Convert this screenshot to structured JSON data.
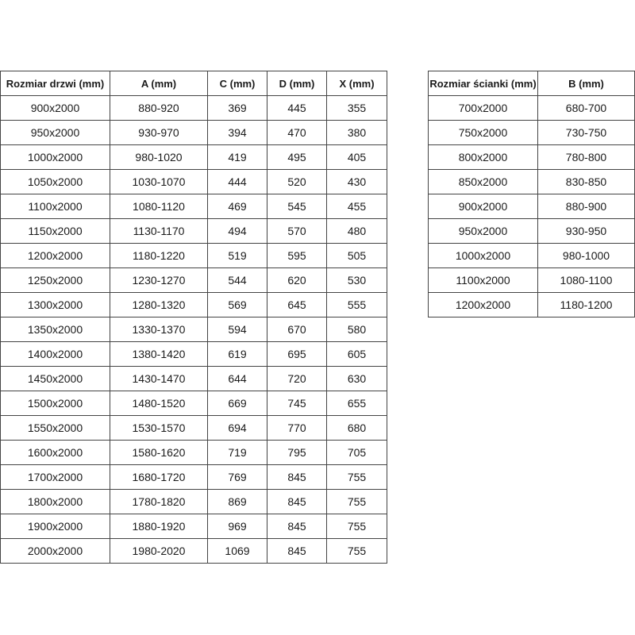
{
  "doors_table": {
    "headers": [
      "Rozmiar drzwi (mm)",
      "A (mm)",
      "C (mm)",
      "D (mm)",
      "X (mm)"
    ],
    "rows": [
      [
        "900x2000",
        "880-920",
        "369",
        "445",
        "355"
      ],
      [
        "950x2000",
        "930-970",
        "394",
        "470",
        "380"
      ],
      [
        "1000x2000",
        "980-1020",
        "419",
        "495",
        "405"
      ],
      [
        "1050x2000",
        "1030-1070",
        "444",
        "520",
        "430"
      ],
      [
        "1100x2000",
        "1080-1120",
        "469",
        "545",
        "455"
      ],
      [
        "1150x2000",
        "1130-1170",
        "494",
        "570",
        "480"
      ],
      [
        "1200x2000",
        "1180-1220",
        "519",
        "595",
        "505"
      ],
      [
        "1250x2000",
        "1230-1270",
        "544",
        "620",
        "530"
      ],
      [
        "1300x2000",
        "1280-1320",
        "569",
        "645",
        "555"
      ],
      [
        "1350x2000",
        "1330-1370",
        "594",
        "670",
        "580"
      ],
      [
        "1400x2000",
        "1380-1420",
        "619",
        "695",
        "605"
      ],
      [
        "1450x2000",
        "1430-1470",
        "644",
        "720",
        "630"
      ],
      [
        "1500x2000",
        "1480-1520",
        "669",
        "745",
        "655"
      ],
      [
        "1550x2000",
        "1530-1570",
        "694",
        "770",
        "680"
      ],
      [
        "1600x2000",
        "1580-1620",
        "719",
        "795",
        "705"
      ],
      [
        "1700x2000",
        "1680-1720",
        "769",
        "845",
        "755"
      ],
      [
        "1800x2000",
        "1780-1820",
        "869",
        "845",
        "755"
      ],
      [
        "1900x2000",
        "1880-1920",
        "969",
        "845",
        "755"
      ],
      [
        "2000x2000",
        "1980-2020",
        "1069",
        "845",
        "755"
      ]
    ]
  },
  "walls_table": {
    "headers": [
      "Rozmiar ścianki (mm)",
      "B (mm)"
    ],
    "rows": [
      [
        "700x2000",
        "680-700"
      ],
      [
        "750x2000",
        "730-750"
      ],
      [
        "800x2000",
        "780-800"
      ],
      [
        "850x2000",
        "830-850"
      ],
      [
        "900x2000",
        "880-900"
      ],
      [
        "950x2000",
        "930-950"
      ],
      [
        "1000x2000",
        "980-1000"
      ],
      [
        "1100x2000",
        "1080-1100"
      ],
      [
        "1200x2000",
        "1180-1200"
      ]
    ]
  }
}
